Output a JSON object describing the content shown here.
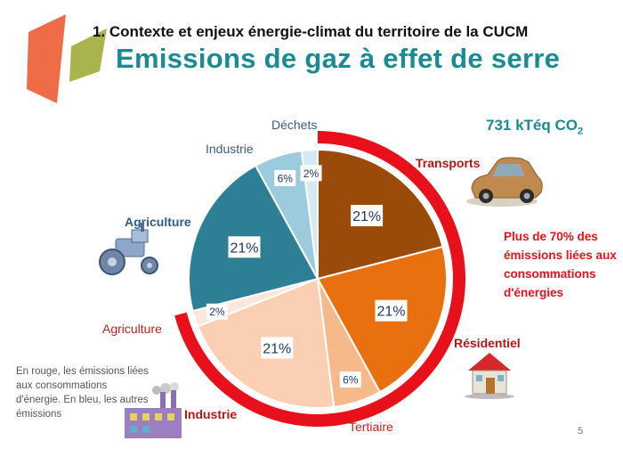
{
  "slide": {
    "section_title": "1. Contexte et enjeux énergie-climat du territoire de la CUCM",
    "title": "Emissions de gaz à effet de serre",
    "total_value": "731 kTéq CO",
    "total_subscript": "2",
    "energy_note": "Plus de 70% des émissions liées aux consommations d'énergies",
    "legend_note": "En rouge, les émissions liées aux consommations d'énergie. En bleu, les autres émissions",
    "page_number": "5"
  },
  "colors": {
    "title": "#1a8a93",
    "energy_highlight": "#e8101a",
    "logo_orange": "#ef6c48",
    "logo_green": "#a9b44c"
  },
  "chart_data": {
    "type": "pie",
    "title": "",
    "start": "12 o'clock, clockwise",
    "slices": [
      {
        "name": "Transports",
        "value": 21,
        "label": "21%",
        "color": "#9a4a09",
        "energy": true,
        "name_color": "#b81512"
      },
      {
        "name": "Résidentiel",
        "value": 21,
        "label": "21%",
        "color": "#e8700e",
        "energy": true,
        "name_color": "#b81512"
      },
      {
        "name": "Tertiaire",
        "value": 6,
        "label": "6%",
        "color": "#f6b98a",
        "energy": true,
        "name_color": "#c0231b"
      },
      {
        "name": "Industrie",
        "value": 21,
        "label": "21%",
        "color": "#fbcfb4",
        "energy": true,
        "name_color": "#b81512"
      },
      {
        "name": "Agriculture",
        "value": 2,
        "label": "2%",
        "color": "#fde6da",
        "energy": true,
        "name_color": "#c0231b"
      },
      {
        "name": "Agriculture",
        "value": 21,
        "label": "21%",
        "color": "#2d7f95",
        "energy": false,
        "name_color": "#2d5b8c"
      },
      {
        "name": "Industrie",
        "value": 6,
        "label": "6%",
        "color": "#9bcbdc",
        "energy": false,
        "name_color": "#3d5c82"
      },
      {
        "name": "Déchets",
        "value": 2,
        "label": "2%",
        "color": "#d6eaf3",
        "energy": false,
        "name_color": "#3d5c82"
      }
    ],
    "energy_share_label": "Plus de 70%"
  }
}
